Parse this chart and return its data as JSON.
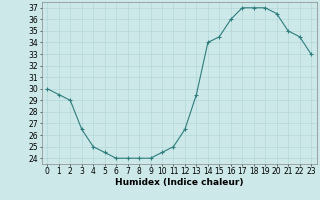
{
  "hours": [
    0,
    1,
    2,
    3,
    4,
    5,
    6,
    7,
    8,
    9,
    10,
    11,
    12,
    13,
    14,
    15,
    16,
    17,
    18,
    19,
    20,
    21,
    22,
    23
  ],
  "values": [
    30.0,
    29.5,
    29.0,
    26.5,
    25.0,
    24.5,
    24.0,
    24.0,
    24.0,
    24.0,
    24.5,
    25.0,
    26.5,
    29.5,
    34.0,
    34.5,
    36.0,
    37.0,
    37.0,
    37.0,
    36.5,
    35.0,
    34.5,
    33.0
  ],
  "line_color": "#2e7d7d",
  "marker_color": "#2e7d7d",
  "bg_color": "#cde8e8",
  "grid_color": "#aed4d4",
  "xlabel": "Humidex (Indice chaleur)",
  "ylim_min": 24,
  "ylim_max": 37,
  "yticks": [
    24,
    25,
    26,
    27,
    28,
    29,
    30,
    31,
    32,
    33,
    34,
    35,
    36,
    37
  ],
  "xticks": [
    0,
    1,
    2,
    3,
    4,
    5,
    6,
    7,
    8,
    9,
    10,
    11,
    12,
    13,
    14,
    15,
    16,
    17,
    18,
    19,
    20,
    21,
    22,
    23
  ],
  "tick_fontsize": 5.5,
  "xlabel_fontsize": 6.5
}
